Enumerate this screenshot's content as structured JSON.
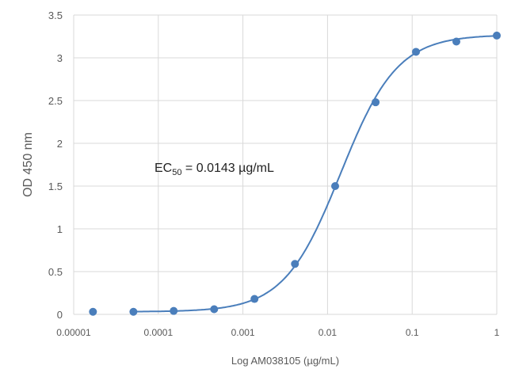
{
  "chart_data": {
    "type": "scatter",
    "title": "",
    "xlabel": "Log AM038105 (µg/mL)",
    "ylabel": "OD 450 nm",
    "xscale": "log",
    "xlim": [
      1e-05,
      1
    ],
    "ylim": [
      0,
      3.5
    ],
    "grid": true,
    "xticks": [
      "0.00001",
      "0.0001",
      "0.001",
      "0.01",
      "0.1",
      "1"
    ],
    "xtick_values": [
      1e-05,
      0.0001,
      0.001,
      0.01,
      0.1,
      1
    ],
    "yticks": [
      "0",
      "0.5",
      "1",
      "1.5",
      "2",
      "2.5",
      "3",
      "3.5"
    ],
    "ytick_values": [
      0,
      0.5,
      1,
      1.5,
      2,
      2.5,
      3,
      3.5
    ],
    "series": [
      {
        "name": "AM038105",
        "color": "#4a7ebb",
        "x": [
          1.69e-05,
          5.08e-05,
          0.000152,
          0.000457,
          0.00137,
          0.00412,
          0.0123,
          0.037,
          0.111,
          0.333,
          1
        ],
        "y": [
          0.03,
          0.03,
          0.04,
          0.06,
          0.18,
          0.59,
          1.5,
          2.48,
          3.07,
          3.19,
          3.26
        ]
      }
    ],
    "fit": {
      "model": "4PL",
      "bottom": 0.03,
      "top": 3.27,
      "ec50": 0.0143,
      "hill": 1.3
    },
    "annotation": {
      "main": "EC",
      "sub": "50",
      "rest": " = 0.0143 µg/mL"
    }
  }
}
